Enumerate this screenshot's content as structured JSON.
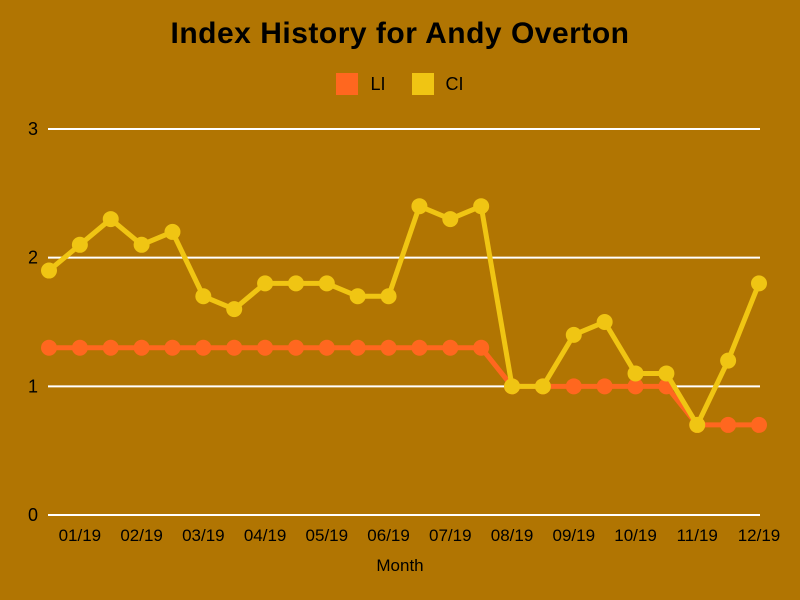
{
  "colors": {
    "background": "#B17502",
    "gridline": "#FFFFFF",
    "text": "#000000",
    "li_accent": "#FF671F",
    "ci_accent": "#F0C513"
  },
  "chart_data": {
    "type": "line",
    "title": "Index History for Andy Overton",
    "xlabel": "Month",
    "ylabel": "",
    "ylim": [
      0,
      3
    ],
    "y_ticks": [
      0,
      1,
      2,
      3
    ],
    "grid": "horizontal",
    "legend_position": "top-center",
    "x_tick_labels": [
      "",
      "01/19",
      "",
      "02/19",
      "",
      "03/19",
      "",
      "04/19",
      "",
      "05/19",
      "",
      "06/19",
      "",
      "07/19",
      "",
      "08/19",
      "",
      "09/19",
      "",
      "10/19",
      "",
      "11/19",
      "",
      "12/19"
    ],
    "series": [
      {
        "name": "LI",
        "color": "#FF671F",
        "values": [
          1.3,
          1.3,
          1.3,
          1.3,
          1.3,
          1.3,
          1.3,
          1.3,
          1.3,
          1.3,
          1.3,
          1.3,
          1.3,
          1.3,
          1.3,
          1.0,
          1.0,
          1.0,
          1.0,
          1.0,
          1.0,
          0.7,
          0.7,
          0.7
        ]
      },
      {
        "name": "CI",
        "color": "#F0C513",
        "values": [
          1.9,
          2.1,
          2.3,
          2.1,
          2.2,
          1.7,
          1.6,
          1.8,
          1.8,
          1.8,
          1.7,
          1.7,
          2.4,
          2.3,
          2.4,
          1.0,
          1.0,
          1.4,
          1.5,
          1.1,
          1.1,
          0.7,
          1.2,
          1.8
        ]
      }
    ]
  }
}
